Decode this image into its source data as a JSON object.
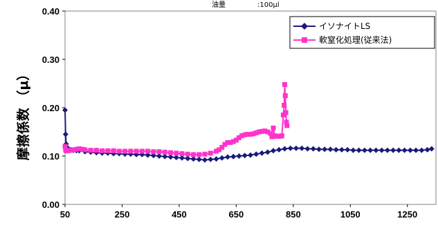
{
  "condition": {
    "label": "油量",
    "value": ":100μl"
  },
  "chart_data": {
    "type": "line",
    "title": "",
    "xlabel": "",
    "ylabel": "摩擦係数 （μ）",
    "xlim": [
      50,
      1350
    ],
    "ylim": [
      0,
      0.4
    ],
    "x_ticks": [
      "50",
      "250",
      "450",
      "650",
      "850",
      "1050",
      "1250"
    ],
    "y_ticks": [
      "0.00",
      "0.10",
      "0.20",
      "0.30",
      "0.40"
    ],
    "grid": false,
    "legend_position": "top-right",
    "series": [
      {
        "name": "イソナイトLS",
        "color": "#1a1a7a",
        "marker": "diamond",
        "points": [
          [
            50,
            0.195
          ],
          [
            52,
            0.145
          ],
          [
            54,
            0.125
          ],
          [
            57,
            0.118
          ],
          [
            62,
            0.115
          ],
          [
            70,
            0.113
          ],
          [
            80,
            0.112
          ],
          [
            90,
            0.111
          ],
          [
            100,
            0.111
          ],
          [
            120,
            0.109
          ],
          [
            140,
            0.108
          ],
          [
            160,
            0.107
          ],
          [
            180,
            0.106
          ],
          [
            200,
            0.106
          ],
          [
            220,
            0.105
          ],
          [
            240,
            0.105
          ],
          [
            260,
            0.104
          ],
          [
            280,
            0.104
          ],
          [
            300,
            0.103
          ],
          [
            320,
            0.103
          ],
          [
            340,
            0.102
          ],
          [
            360,
            0.101
          ],
          [
            380,
            0.1
          ],
          [
            400,
            0.099
          ],
          [
            420,
            0.098
          ],
          [
            440,
            0.097
          ],
          [
            460,
            0.096
          ],
          [
            480,
            0.095
          ],
          [
            500,
            0.094
          ],
          [
            520,
            0.093
          ],
          [
            540,
            0.092
          ],
          [
            560,
            0.093
          ],
          [
            580,
            0.094
          ],
          [
            600,
            0.096
          ],
          [
            620,
            0.098
          ],
          [
            640,
            0.099
          ],
          [
            660,
            0.1
          ],
          [
            680,
            0.101
          ],
          [
            700,
            0.102
          ],
          [
            720,
            0.104
          ],
          [
            740,
            0.106
          ],
          [
            760,
            0.108
          ],
          [
            780,
            0.111
          ],
          [
            800,
            0.113
          ],
          [
            820,
            0.115
          ],
          [
            840,
            0.116
          ],
          [
            860,
            0.116
          ],
          [
            880,
            0.116
          ],
          [
            900,
            0.115
          ],
          [
            920,
            0.115
          ],
          [
            940,
            0.114
          ],
          [
            960,
            0.114
          ],
          [
            980,
            0.114
          ],
          [
            1000,
            0.113
          ],
          [
            1020,
            0.113
          ],
          [
            1040,
            0.113
          ],
          [
            1060,
            0.112
          ],
          [
            1080,
            0.112
          ],
          [
            1100,
            0.112
          ],
          [
            1120,
            0.112
          ],
          [
            1140,
            0.112
          ],
          [
            1160,
            0.112
          ],
          [
            1180,
            0.112
          ],
          [
            1200,
            0.112
          ],
          [
            1220,
            0.112
          ],
          [
            1240,
            0.112
          ],
          [
            1260,
            0.112
          ],
          [
            1280,
            0.112
          ],
          [
            1300,
            0.112
          ],
          [
            1320,
            0.113
          ],
          [
            1335,
            0.115
          ]
        ]
      },
      {
        "name": "軟窒化処理(従来法)",
        "color": "#ff33cc",
        "marker": "square",
        "points": [
          [
            50,
            0.12
          ],
          [
            52,
            0.113
          ],
          [
            55,
            0.111
          ],
          [
            60,
            0.111
          ],
          [
            70,
            0.112
          ],
          [
            80,
            0.113
          ],
          [
            90,
            0.114
          ],
          [
            100,
            0.115
          ],
          [
            110,
            0.114
          ],
          [
            120,
            0.113
          ],
          [
            140,
            0.112
          ],
          [
            160,
            0.112
          ],
          [
            180,
            0.111
          ],
          [
            200,
            0.111
          ],
          [
            220,
            0.111
          ],
          [
            240,
            0.11
          ],
          [
            260,
            0.11
          ],
          [
            280,
            0.11
          ],
          [
            300,
            0.11
          ],
          [
            320,
            0.11
          ],
          [
            340,
            0.11
          ],
          [
            360,
            0.109
          ],
          [
            380,
            0.109
          ],
          [
            400,
            0.108
          ],
          [
            420,
            0.107
          ],
          [
            440,
            0.106
          ],
          [
            460,
            0.105
          ],
          [
            480,
            0.104
          ],
          [
            500,
            0.103
          ],
          [
            520,
            0.103
          ],
          [
            540,
            0.104
          ],
          [
            560,
            0.106
          ],
          [
            580,
            0.11
          ],
          [
            590,
            0.113
          ],
          [
            600,
            0.118
          ],
          [
            610,
            0.124
          ],
          [
            620,
            0.128
          ],
          [
            630,
            0.128
          ],
          [
            640,
            0.13
          ],
          [
            650,
            0.133
          ],
          [
            660,
            0.138
          ],
          [
            670,
            0.142
          ],
          [
            680,
            0.144
          ],
          [
            690,
            0.145
          ],
          [
            700,
            0.145
          ],
          [
            710,
            0.146
          ],
          [
            720,
            0.148
          ],
          [
            730,
            0.15
          ],
          [
            740,
            0.151
          ],
          [
            750,
            0.152
          ],
          [
            760,
            0.15
          ],
          [
            770,
            0.147
          ],
          [
            775,
            0.14
          ],
          [
            780,
            0.158
          ],
          [
            785,
            0.142
          ],
          [
            790,
            0.141
          ],
          [
            795,
            0.141
          ],
          [
            800,
            0.141
          ],
          [
            805,
            0.141
          ],
          [
            810,
            0.142
          ],
          [
            815,
            0.185
          ],
          [
            818,
            0.205
          ],
          [
            820,
            0.248
          ],
          [
            822,
            0.225
          ],
          [
            824,
            0.19
          ],
          [
            826,
            0.17
          ],
          [
            828,
            0.163
          ]
        ]
      }
    ]
  }
}
